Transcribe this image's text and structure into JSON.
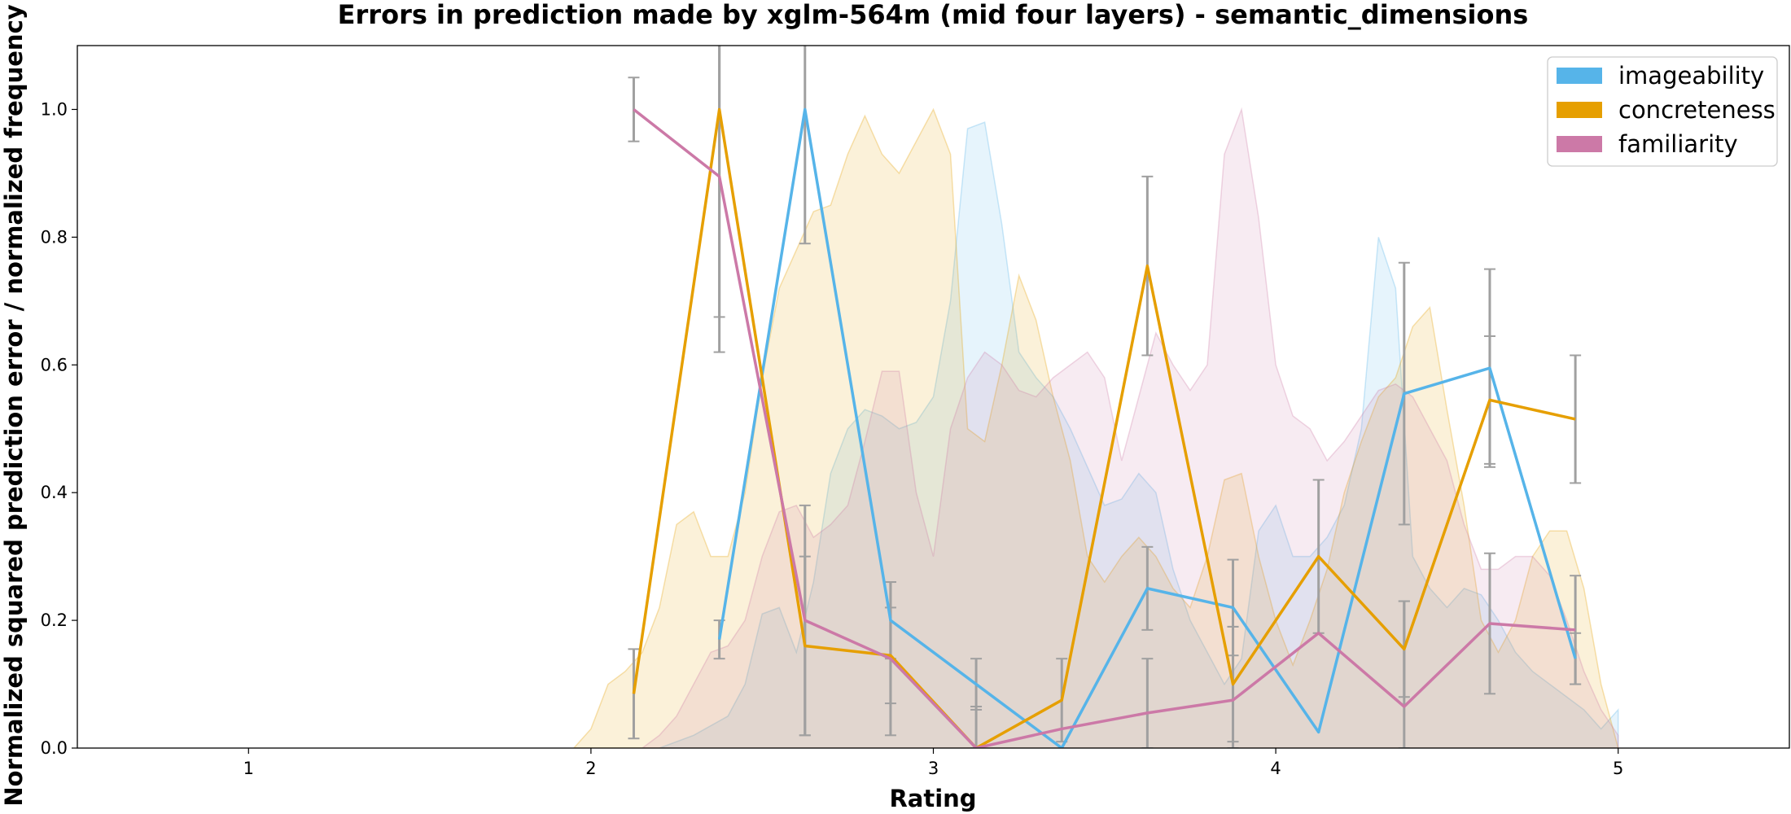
{
  "chart_data": {
    "type": "line",
    "title": "Errors in prediction made by xglm-564m (mid four layers) - semantic_dimensions",
    "xlabel": "Rating",
    "ylabel": "Normalized squared prediction error / normalized frequency",
    "xlim": [
      0.5,
      5.5
    ],
    "ylim": [
      0,
      1.1
    ],
    "xticks": [
      1,
      2,
      3,
      4,
      5
    ],
    "yticks": [
      0.0,
      0.2,
      0.4,
      0.6,
      0.8,
      1.0
    ],
    "xtick_labels": [
      "1",
      "2",
      "3",
      "4",
      "5"
    ],
    "ytick_labels": [
      "0.0",
      "0.2",
      "0.4",
      "0.6",
      "0.8",
      "1.0"
    ],
    "grid": false,
    "legend_position": "top-right",
    "series": [
      {
        "name": "imageability",
        "color": "#56B4E9",
        "x": [
          2.375,
          2.625,
          2.875,
          3.125,
          3.375,
          3.625,
          3.875,
          4.125,
          4.375,
          4.625,
          4.875
        ],
        "y": [
          0.17,
          1.0,
          0.2,
          0.1,
          0.0,
          0.25,
          0.22,
          0.025,
          0.555,
          0.595,
          0.14
        ],
        "err": [
          0.03,
          0.21,
          0.06,
          0.04,
          0.0,
          0.065,
          0.075,
          0.0,
          0.205,
          0.155,
          0.04
        ],
        "frequency": {
          "x": [
            2.2,
            2.3,
            2.4,
            2.45,
            2.5,
            2.55,
            2.6,
            2.65,
            2.7,
            2.75,
            2.8,
            2.85,
            2.9,
            2.95,
            3.0,
            3.05,
            3.1,
            3.15,
            3.2,
            3.25,
            3.3,
            3.35,
            3.4,
            3.45,
            3.5,
            3.55,
            3.6,
            3.65,
            3.7,
            3.75,
            3.8,
            3.85,
            3.9,
            3.95,
            4.0,
            4.05,
            4.1,
            4.15,
            4.2,
            4.25,
            4.3,
            4.35,
            4.4,
            4.45,
            4.5,
            4.55,
            4.6,
            4.65,
            4.7,
            4.75,
            4.8,
            4.85,
            4.9,
            4.95,
            5.0
          ],
          "y": [
            0.0,
            0.02,
            0.05,
            0.1,
            0.21,
            0.22,
            0.15,
            0.26,
            0.43,
            0.5,
            0.53,
            0.52,
            0.5,
            0.51,
            0.55,
            0.7,
            0.97,
            0.98,
            0.82,
            0.62,
            0.58,
            0.55,
            0.5,
            0.44,
            0.38,
            0.39,
            0.43,
            0.4,
            0.28,
            0.2,
            0.15,
            0.1,
            0.14,
            0.34,
            0.38,
            0.3,
            0.3,
            0.33,
            0.38,
            0.5,
            0.8,
            0.72,
            0.3,
            0.25,
            0.22,
            0.25,
            0.24,
            0.2,
            0.15,
            0.12,
            0.1,
            0.08,
            0.06,
            0.03,
            0.06
          ]
        }
      },
      {
        "name": "concreteness",
        "color": "#E69F00",
        "x": [
          2.125,
          2.375,
          2.625,
          2.875,
          3.125,
          3.375,
          3.625,
          3.875,
          4.125,
          4.375,
          4.625,
          4.875
        ],
        "y": [
          0.085,
          1.0,
          0.16,
          0.145,
          0.0,
          0.075,
          0.755,
          0.1,
          0.3,
          0.155,
          0.545,
          0.515
        ],
        "err": [
          0.07,
          0.38,
          0.14,
          0.075,
          0.065,
          0.065,
          0.14,
          0.09,
          0.12,
          0.075,
          0.1,
          0.1
        ],
        "frequency": {
          "x": [
            1.95,
            2.0,
            2.05,
            2.1,
            2.15,
            2.2,
            2.25,
            2.3,
            2.35,
            2.4,
            2.45,
            2.5,
            2.55,
            2.6,
            2.65,
            2.7,
            2.75,
            2.8,
            2.85,
            2.9,
            2.95,
            3.0,
            3.05,
            3.1,
            3.15,
            3.2,
            3.25,
            3.3,
            3.35,
            3.4,
            3.45,
            3.5,
            3.55,
            3.6,
            3.65,
            3.7,
            3.75,
            3.8,
            3.85,
            3.9,
            3.95,
            4.0,
            4.05,
            4.1,
            4.15,
            4.2,
            4.25,
            4.3,
            4.35,
            4.4,
            4.45,
            4.5,
            4.55,
            4.6,
            4.65,
            4.7,
            4.75,
            4.8,
            4.85,
            4.9,
            4.95,
            5.0
          ],
          "y": [
            0.0,
            0.03,
            0.1,
            0.12,
            0.15,
            0.22,
            0.35,
            0.37,
            0.3,
            0.3,
            0.4,
            0.58,
            0.72,
            0.78,
            0.84,
            0.85,
            0.93,
            0.99,
            0.93,
            0.9,
            0.95,
            1.0,
            0.93,
            0.5,
            0.48,
            0.6,
            0.74,
            0.67,
            0.55,
            0.45,
            0.3,
            0.26,
            0.3,
            0.33,
            0.3,
            0.25,
            0.22,
            0.3,
            0.42,
            0.43,
            0.3,
            0.2,
            0.13,
            0.2,
            0.28,
            0.4,
            0.48,
            0.55,
            0.58,
            0.66,
            0.69,
            0.53,
            0.38,
            0.2,
            0.15,
            0.2,
            0.3,
            0.34,
            0.34,
            0.25,
            0.1,
            0.0
          ]
        }
      },
      {
        "name": "familiarity",
        "color": "#CC79A7",
        "x": [
          2.125,
          2.375,
          2.625,
          2.875,
          3.125,
          3.375,
          3.625,
          3.875,
          4.125,
          4.375,
          4.625,
          4.875
        ],
        "y": [
          1.0,
          0.895,
          0.2,
          0.14,
          0.0,
          0.03,
          0.055,
          0.075,
          0.18,
          0.065,
          0.195,
          0.185
        ],
        "err": [
          0.05,
          0.22,
          0.18,
          0.12,
          0.0,
          0.0,
          0.085,
          0.115,
          0.0,
          0.165,
          0.11,
          0.085
        ],
        "frequency": {
          "x": [
            2.15,
            2.2,
            2.25,
            2.3,
            2.35,
            2.4,
            2.45,
            2.5,
            2.55,
            2.6,
            2.65,
            2.7,
            2.75,
            2.8,
            2.85,
            2.9,
            2.95,
            3.0,
            3.05,
            3.1,
            3.15,
            3.2,
            3.25,
            3.3,
            3.35,
            3.4,
            3.45,
            3.5,
            3.55,
            3.6,
            3.65,
            3.7,
            3.75,
            3.8,
            3.85,
            3.9,
            3.95,
            4.0,
            4.05,
            4.1,
            4.15,
            4.2,
            4.25,
            4.3,
            4.35,
            4.4,
            4.45,
            4.5,
            4.55,
            4.6,
            4.65,
            4.7,
            4.75,
            4.8,
            4.85,
            4.9,
            4.95,
            5.0
          ],
          "y": [
            0.0,
            0.02,
            0.05,
            0.1,
            0.15,
            0.16,
            0.2,
            0.3,
            0.37,
            0.38,
            0.33,
            0.35,
            0.38,
            0.48,
            0.59,
            0.59,
            0.4,
            0.3,
            0.5,
            0.58,
            0.62,
            0.6,
            0.56,
            0.55,
            0.58,
            0.6,
            0.62,
            0.58,
            0.45,
            0.55,
            0.65,
            0.6,
            0.56,
            0.6,
            0.93,
            1.0,
            0.83,
            0.6,
            0.52,
            0.5,
            0.45,
            0.48,
            0.52,
            0.56,
            0.57,
            0.55,
            0.5,
            0.45,
            0.35,
            0.28,
            0.28,
            0.3,
            0.3,
            0.27,
            0.2,
            0.12,
            0.06,
            0.02
          ]
        }
      }
    ]
  }
}
